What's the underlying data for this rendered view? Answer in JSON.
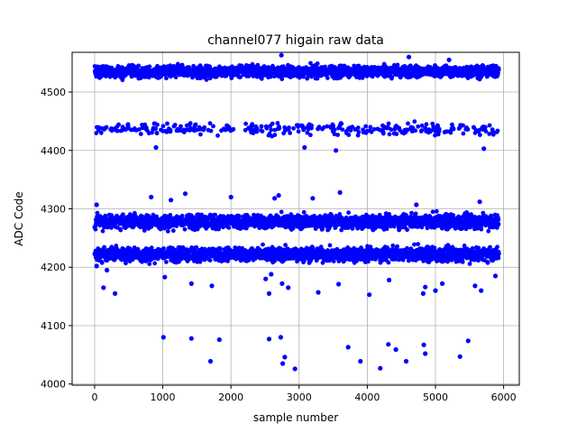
{
  "chart_data": {
    "type": "scatter",
    "title": "channel077 higain raw data",
    "xlabel": "sample number",
    "ylabel": "ADC Code",
    "xlim": [
      -330,
      6230
    ],
    "ylim": [
      3998,
      4568
    ],
    "xticks": [
      0,
      1000,
      2000,
      3000,
      4000,
      5000,
      6000
    ],
    "yticks": [
      4000,
      4100,
      4200,
      4300,
      4400,
      4500
    ],
    "grid": true,
    "marker_color": "#0000ff",
    "n_samples": 5930,
    "bands": [
      {
        "center": 4535,
        "spread": 5,
        "density": 0.85
      },
      {
        "center": 4437,
        "spread": 5,
        "density": 0.16
      },
      {
        "center": 4278,
        "spread": 6,
        "density": 0.9
      },
      {
        "center": 4222,
        "spread": 6,
        "density": 0.9
      }
    ],
    "outliers": [
      {
        "x": 30,
        "y": 4202
      },
      {
        "x": 70,
        "y": 4215
      },
      {
        "x": 130,
        "y": 4165
      },
      {
        "x": 180,
        "y": 4195
      },
      {
        "x": 300,
        "y": 4155
      },
      {
        "x": 1030,
        "y": 4183
      },
      {
        "x": 1420,
        "y": 4172
      },
      {
        "x": 1720,
        "y": 4168
      },
      {
        "x": 2510,
        "y": 4180
      },
      {
        "x": 2560,
        "y": 4155
      },
      {
        "x": 2590,
        "y": 4188
      },
      {
        "x": 2750,
        "y": 4172
      },
      {
        "x": 2840,
        "y": 4165
      },
      {
        "x": 3280,
        "y": 4157
      },
      {
        "x": 3580,
        "y": 4171
      },
      {
        "x": 4030,
        "y": 4153
      },
      {
        "x": 4320,
        "y": 4178
      },
      {
        "x": 4820,
        "y": 4155
      },
      {
        "x": 4850,
        "y": 4166
      },
      {
        "x": 5000,
        "y": 4160
      },
      {
        "x": 5100,
        "y": 4172
      },
      {
        "x": 5580,
        "y": 4168
      },
      {
        "x": 5670,
        "y": 4160
      },
      {
        "x": 5880,
        "y": 4185
      },
      {
        "x": 1010,
        "y": 4080
      },
      {
        "x": 1420,
        "y": 4078
      },
      {
        "x": 1830,
        "y": 4076
      },
      {
        "x": 1700,
        "y": 4039
      },
      {
        "x": 2560,
        "y": 4077
      },
      {
        "x": 2730,
        "y": 4080
      },
      {
        "x": 2760,
        "y": 4035
      },
      {
        "x": 2790,
        "y": 4046
      },
      {
        "x": 2940,
        "y": 4026
      },
      {
        "x": 3720,
        "y": 4063
      },
      {
        "x": 3900,
        "y": 4039
      },
      {
        "x": 4190,
        "y": 4027
      },
      {
        "x": 4310,
        "y": 4068
      },
      {
        "x": 4420,
        "y": 4059
      },
      {
        "x": 4570,
        "y": 4039
      },
      {
        "x": 4830,
        "y": 4067
      },
      {
        "x": 4850,
        "y": 4052
      },
      {
        "x": 5360,
        "y": 4047
      },
      {
        "x": 5480,
        "y": 4074
      },
      {
        "x": 830,
        "y": 4320
      },
      {
        "x": 1120,
        "y": 4315
      },
      {
        "x": 1330,
        "y": 4326
      },
      {
        "x": 2000,
        "y": 4320
      },
      {
        "x": 2640,
        "y": 4318
      },
      {
        "x": 2700,
        "y": 4323
      },
      {
        "x": 3200,
        "y": 4318
      },
      {
        "x": 3600,
        "y": 4328
      },
      {
        "x": 4720,
        "y": 4307
      },
      {
        "x": 5650,
        "y": 4312
      },
      {
        "x": 30,
        "y": 4307
      },
      {
        "x": 900,
        "y": 4405
      },
      {
        "x": 3080,
        "y": 4405
      },
      {
        "x": 3540,
        "y": 4400
      },
      {
        "x": 5710,
        "y": 4403
      },
      {
        "x": 2740,
        "y": 4563
      },
      {
        "x": 4610,
        "y": 4560
      },
      {
        "x": 5200,
        "y": 4555
      }
    ]
  }
}
